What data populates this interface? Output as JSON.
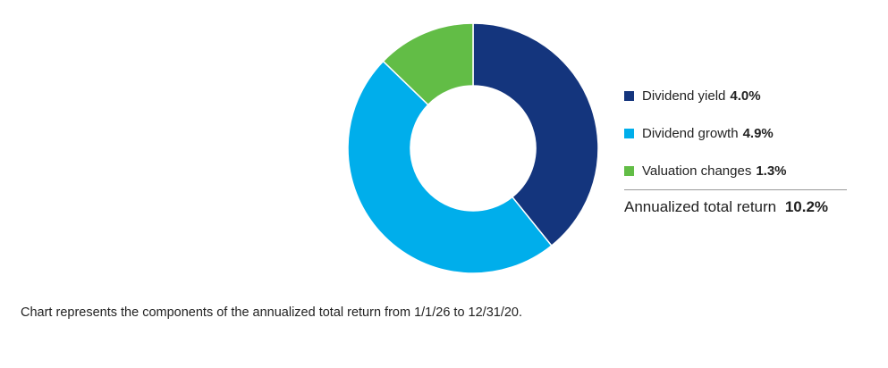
{
  "chart_data": {
    "type": "pie",
    "subtype": "donut",
    "slices": [
      {
        "label": "Dividend yield",
        "value": 4.0,
        "display": "4.0%",
        "color": "#14357d"
      },
      {
        "label": "Dividend growth",
        "value": 4.9,
        "display": "4.9%",
        "color": "#00aeeb"
      },
      {
        "label": "Valuation changes",
        "value": 1.3,
        "display": "1.3%",
        "color": "#62bd46"
      }
    ],
    "total": {
      "label": "Annualized total return",
      "display": "10.2%",
      "value": 10.2
    },
    "legend_position": "right"
  },
  "footnote": "Chart represents the components of the annualized total return from 1/1/26 to 12/31/20."
}
